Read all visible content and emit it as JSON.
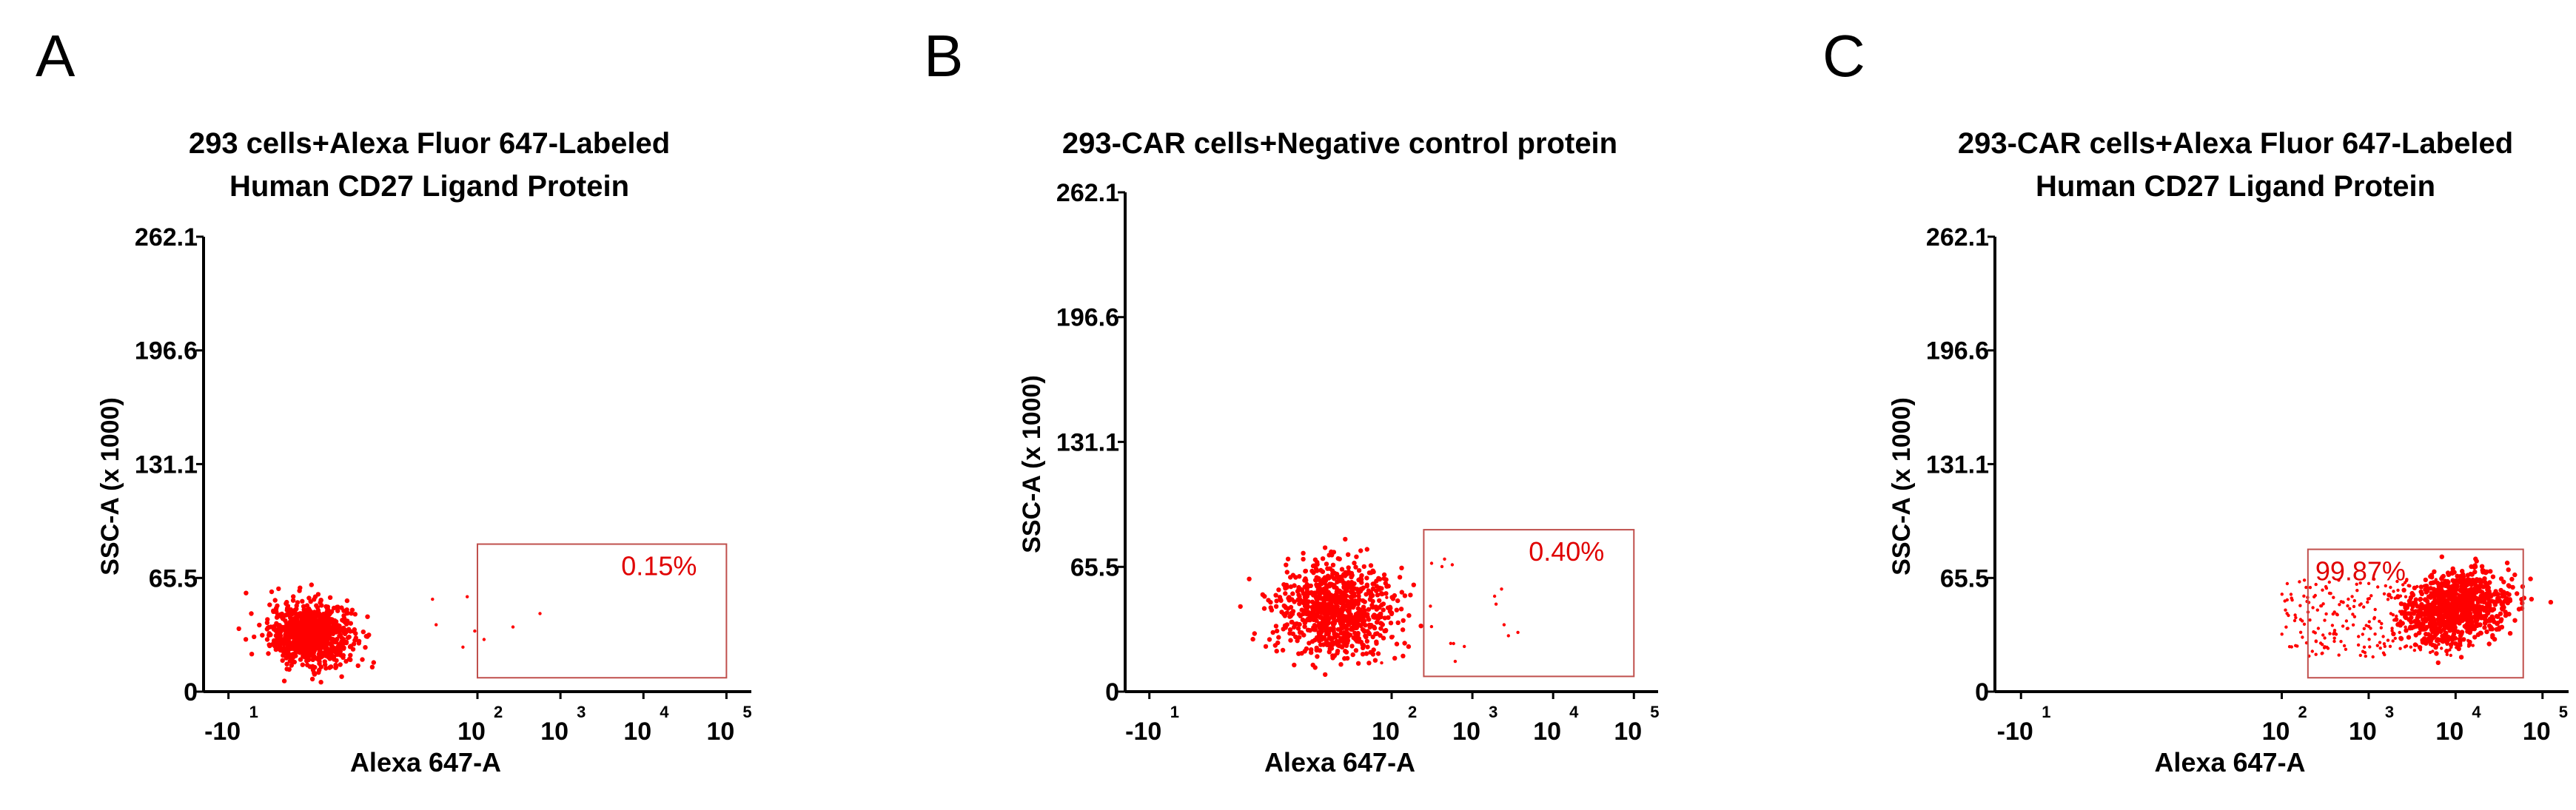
{
  "chart_data": [
    {
      "type": "scatter",
      "panel_label": "A",
      "title_lines": [
        "293 cells+Alexa Fluor 647-Labeled",
        "Human CD27 Ligand Protein"
      ],
      "xlabel": "Alexa 647-A",
      "ylabel": "SSC-A (x 1000)",
      "x_scale": "biexponential (log)",
      "x_ticks": [
        {
          "base": "-10",
          "exp": "1",
          "value": -10
        },
        {
          "base": "10",
          "exp": "2",
          "value": 100
        },
        {
          "base": "10",
          "exp": "3",
          "value": 1000
        },
        {
          "base": "10",
          "exp": "4",
          "value": 10000
        },
        {
          "base": "10",
          "exp": "5",
          "value": 100000
        }
      ],
      "y_ticks": [
        "0",
        "65.5",
        "131.1",
        "196.6",
        "262.1"
      ],
      "ylim": [
        0,
        262.1
      ],
      "gate": {
        "label": "0.15%",
        "x_range": [
          100,
          100000
        ],
        "y_range": [
          8,
          85
        ]
      },
      "population": {
        "center_x": 0,
        "center_y": 33,
        "spread_y": 9
      },
      "color": "#ff0000",
      "gate_color": "#c0504d"
    },
    {
      "type": "scatter",
      "panel_label": "B",
      "title_lines": [
        "293-CAR cells+Negative control protein"
      ],
      "xlabel": "Alexa 647-A",
      "ylabel": "SSC-A (x 1000)",
      "x_scale": "biexponential (log)",
      "x_ticks": [
        {
          "base": "-10",
          "exp": "1",
          "value": -10
        },
        {
          "base": "10",
          "exp": "2",
          "value": 100
        },
        {
          "base": "10",
          "exp": "3",
          "value": 1000
        },
        {
          "base": "10",
          "exp": "4",
          "value": 10000
        },
        {
          "base": "10",
          "exp": "5",
          "value": 100000
        }
      ],
      "y_ticks": [
        "0",
        "65.5",
        "131.1",
        "196.6",
        "262.1"
      ],
      "ylim": [
        0,
        262.1
      ],
      "gate": {
        "label": "0.40%",
        "x_range": [
          250,
          100000
        ],
        "y_range": [
          8,
          85
        ]
      },
      "population": {
        "center_x": 20,
        "center_y": 43,
        "spread_y": 12
      },
      "color": "#ff0000",
      "gate_color": "#c0504d"
    },
    {
      "type": "scatter",
      "panel_label": "C",
      "title_lines": [
        "293-CAR cells+Alexa Fluor 647-Labeled",
        "Human CD27 Ligand Protein"
      ],
      "xlabel": "Alexa 647-A",
      "ylabel": "SSC-A (x 1000)",
      "x_scale": "biexponential (log)",
      "x_ticks": [
        {
          "base": "-10",
          "exp": "1",
          "value": -10
        },
        {
          "base": "10",
          "exp": "2",
          "value": 100
        },
        {
          "base": "10",
          "exp": "3",
          "value": 1000
        },
        {
          "base": "10",
          "exp": "4",
          "value": 10000
        },
        {
          "base": "10",
          "exp": "5",
          "value": 100000
        }
      ],
      "y_ticks": [
        "0",
        "65.5",
        "131.1",
        "196.6",
        "262.1"
      ],
      "ylim": [
        0,
        262.1
      ],
      "gate": {
        "label": "99.87%",
        "x_range": [
          200,
          60000
        ],
        "y_range": [
          8,
          82
        ]
      },
      "population": {
        "center_x": 10000,
        "center_y": 48,
        "spread_y": 10
      },
      "color": "#ff0000",
      "gate_color": "#c0504d"
    }
  ]
}
